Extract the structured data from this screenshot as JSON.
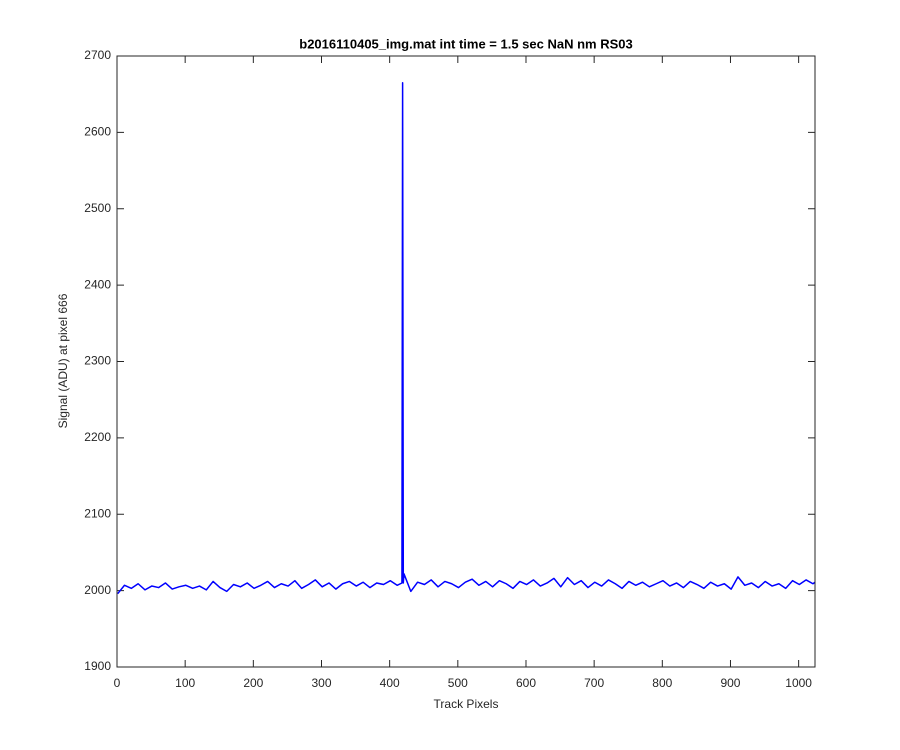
{
  "chart_data": {
    "type": "line",
    "title": "b2016110405_img.mat int time = 1.5 sec  NaN nm RS03",
    "xlabel": "Track Pixels",
    "ylabel": "Signal (ADU) at pixel 666",
    "xlim": [
      0,
      1024
    ],
    "ylim": [
      1900,
      2700
    ],
    "xticks": [
      0,
      100,
      200,
      300,
      400,
      500,
      600,
      700,
      800,
      900,
      1000
    ],
    "yticks": [
      1900,
      2000,
      2100,
      2200,
      2300,
      2400,
      2500,
      2600,
      2700
    ],
    "x": [
      1,
      11,
      21,
      31,
      41,
      51,
      61,
      71,
      81,
      91,
      101,
      111,
      121,
      131,
      141,
      151,
      161,
      171,
      181,
      191,
      201,
      211,
      221,
      231,
      241,
      251,
      261,
      271,
      281,
      291,
      301,
      311,
      321,
      331,
      341,
      351,
      361,
      371,
      381,
      391,
      401,
      411,
      418,
      419,
      420,
      421,
      431,
      441,
      451,
      461,
      471,
      481,
      491,
      501,
      511,
      521,
      531,
      541,
      551,
      561,
      571,
      581,
      591,
      601,
      611,
      621,
      631,
      641,
      651,
      661,
      671,
      681,
      691,
      701,
      711,
      721,
      731,
      741,
      751,
      761,
      771,
      781,
      791,
      801,
      811,
      821,
      831,
      841,
      851,
      861,
      871,
      881,
      891,
      901,
      911,
      921,
      931,
      941,
      951,
      961,
      971,
      981,
      991,
      1001,
      1011,
      1021,
      1024
    ],
    "series": [
      {
        "color": "#0000ff",
        "values": [
          1996,
          2007,
          2003,
          2009,
          2001,
          2006,
          2004,
          2010,
          2002,
          2005,
          2007,
          2003,
          2006,
          2001,
          2012,
          2004,
          1999,
          2008,
          2005,
          2010,
          2003,
          2007,
          2012,
          2004,
          2009,
          2006,
          2013,
          2003,
          2008,
          2014,
          2005,
          2010,
          2002,
          2009,
          2012,
          2006,
          2011,
          2004,
          2010,
          2008,
          2013,
          2007,
          2010,
          2665,
          2010,
          2022,
          1999,
          2011,
          2008,
          2014,
          2005,
          2012,
          2009,
          2004,
          2011,
          2015,
          2007,
          2012,
          2005,
          2013,
          2009,
          2003,
          2012,
          2008,
          2014,
          2006,
          2010,
          2016,
          2005,
          2017,
          2008,
          2013,
          2004,
          2011,
          2006,
          2014,
          2009,
          2003,
          2012,
          2007,
          2011,
          2005,
          2009,
          2013,
          2006,
          2010,
          2004,
          2012,
          2008,
          2003,
          2011,
          2006,
          2009,
          2002,
          2018,
          2007,
          2010,
          2004,
          2012,
          2006,
          2009,
          2003,
          2013,
          2008,
          2014,
          2009,
          2011
        ]
      }
    ]
  }
}
